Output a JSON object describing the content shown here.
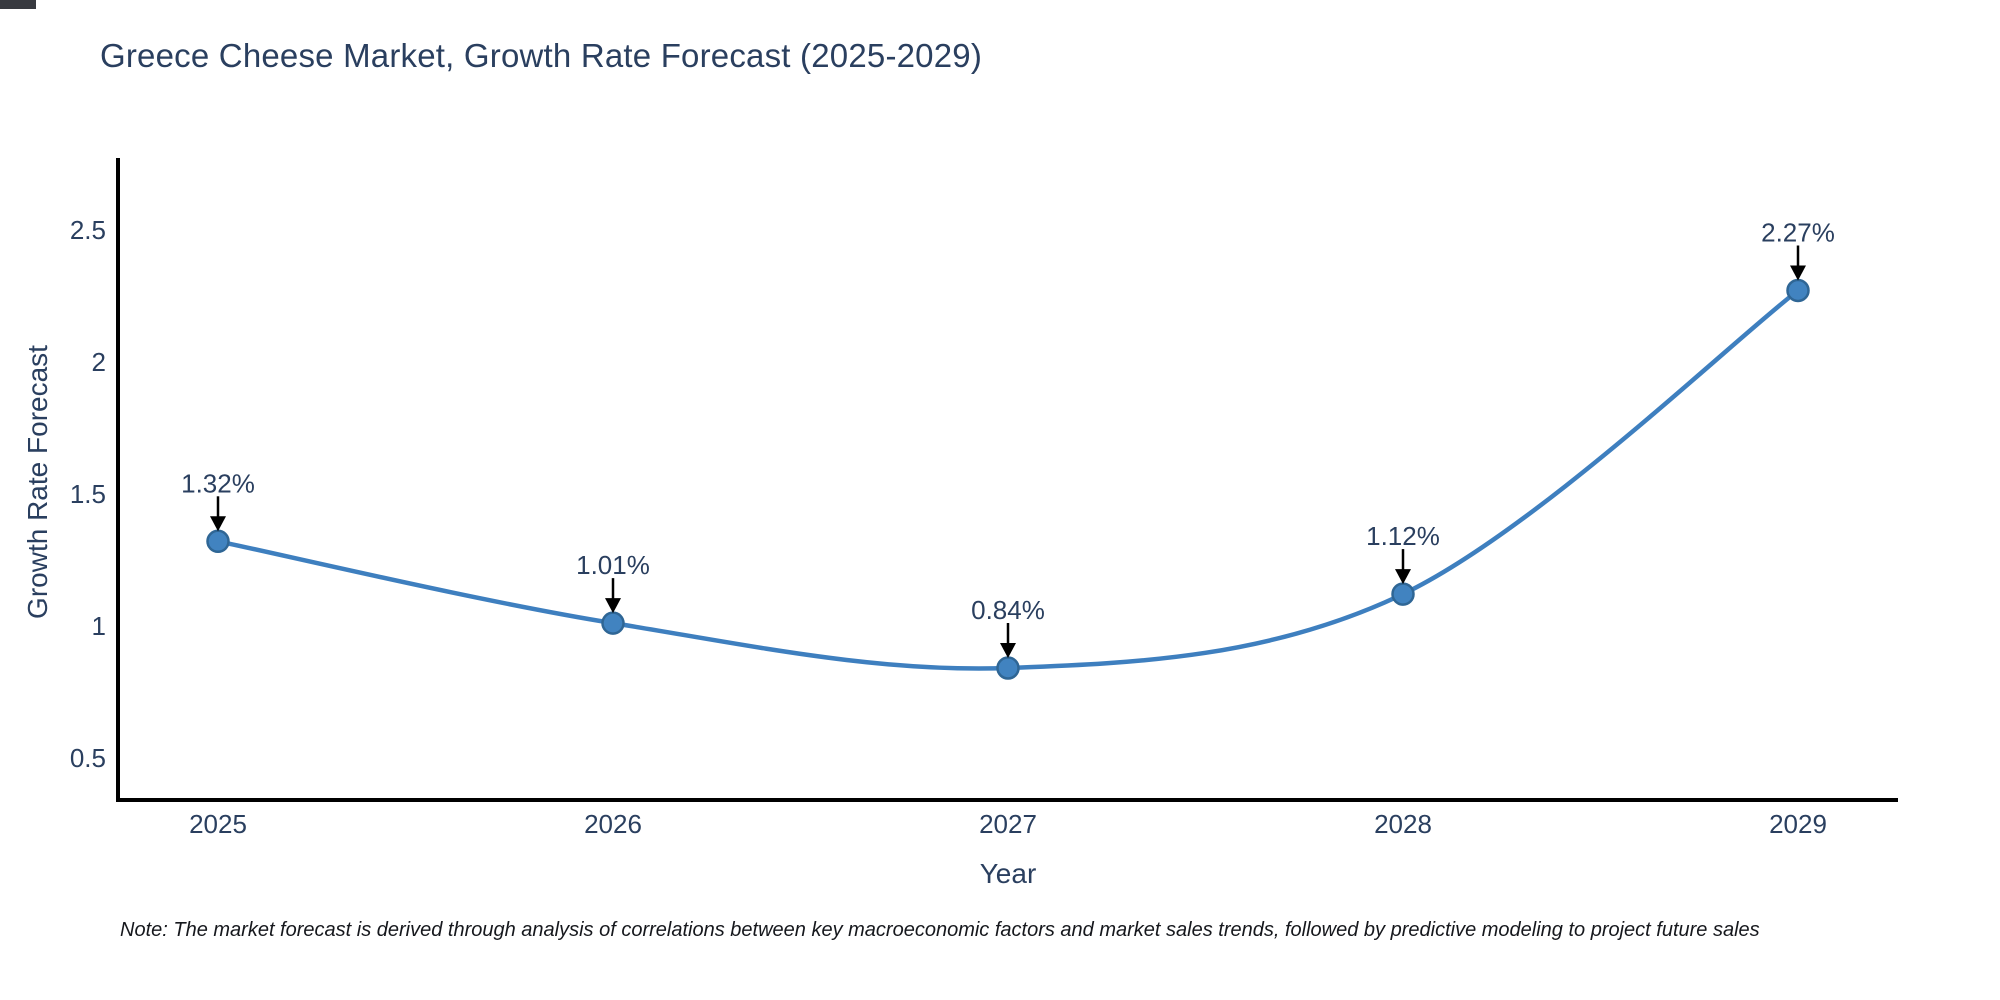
{
  "header": {
    "title": "Greece Cheese Market, Growth Rate Forecast (2025-2029)"
  },
  "note": "Note: The market forecast is derived through analysis of correlations between key macroeconomic factors and market sales trends, followed by predictive modeling to project future sales",
  "chart_data": {
    "type": "line",
    "title": "Greece Cheese Market, Growth Rate Forecast (2025-2029)",
    "xlabel": "Year",
    "ylabel": "Growth Rate Forecast",
    "categories": [
      "2025",
      "2026",
      "2027",
      "2028",
      "2029"
    ],
    "values": [
      1.32,
      1.01,
      0.84,
      1.12,
      2.27
    ],
    "point_labels": [
      "1.32%",
      "1.01%",
      "0.84%",
      "1.12%",
      "2.27%"
    ],
    "y_tick_values": [
      0.5,
      1,
      1.5,
      2,
      2.5
    ],
    "y_tick_labels": [
      "0.5",
      "1",
      "1.5",
      "2",
      "2.5"
    ],
    "ylim": [
      0.34,
      2.77
    ],
    "grid": false,
    "legend": "none",
    "line_shape": "spline",
    "annotation_style": "down-arrow",
    "colors": {
      "line": "#3e7fbf",
      "marker_fill": "#4183c0",
      "marker_edge": "#2f6695",
      "axis_line": "#000000",
      "text": "#2a3f5f",
      "arrow": "#000000"
    }
  }
}
